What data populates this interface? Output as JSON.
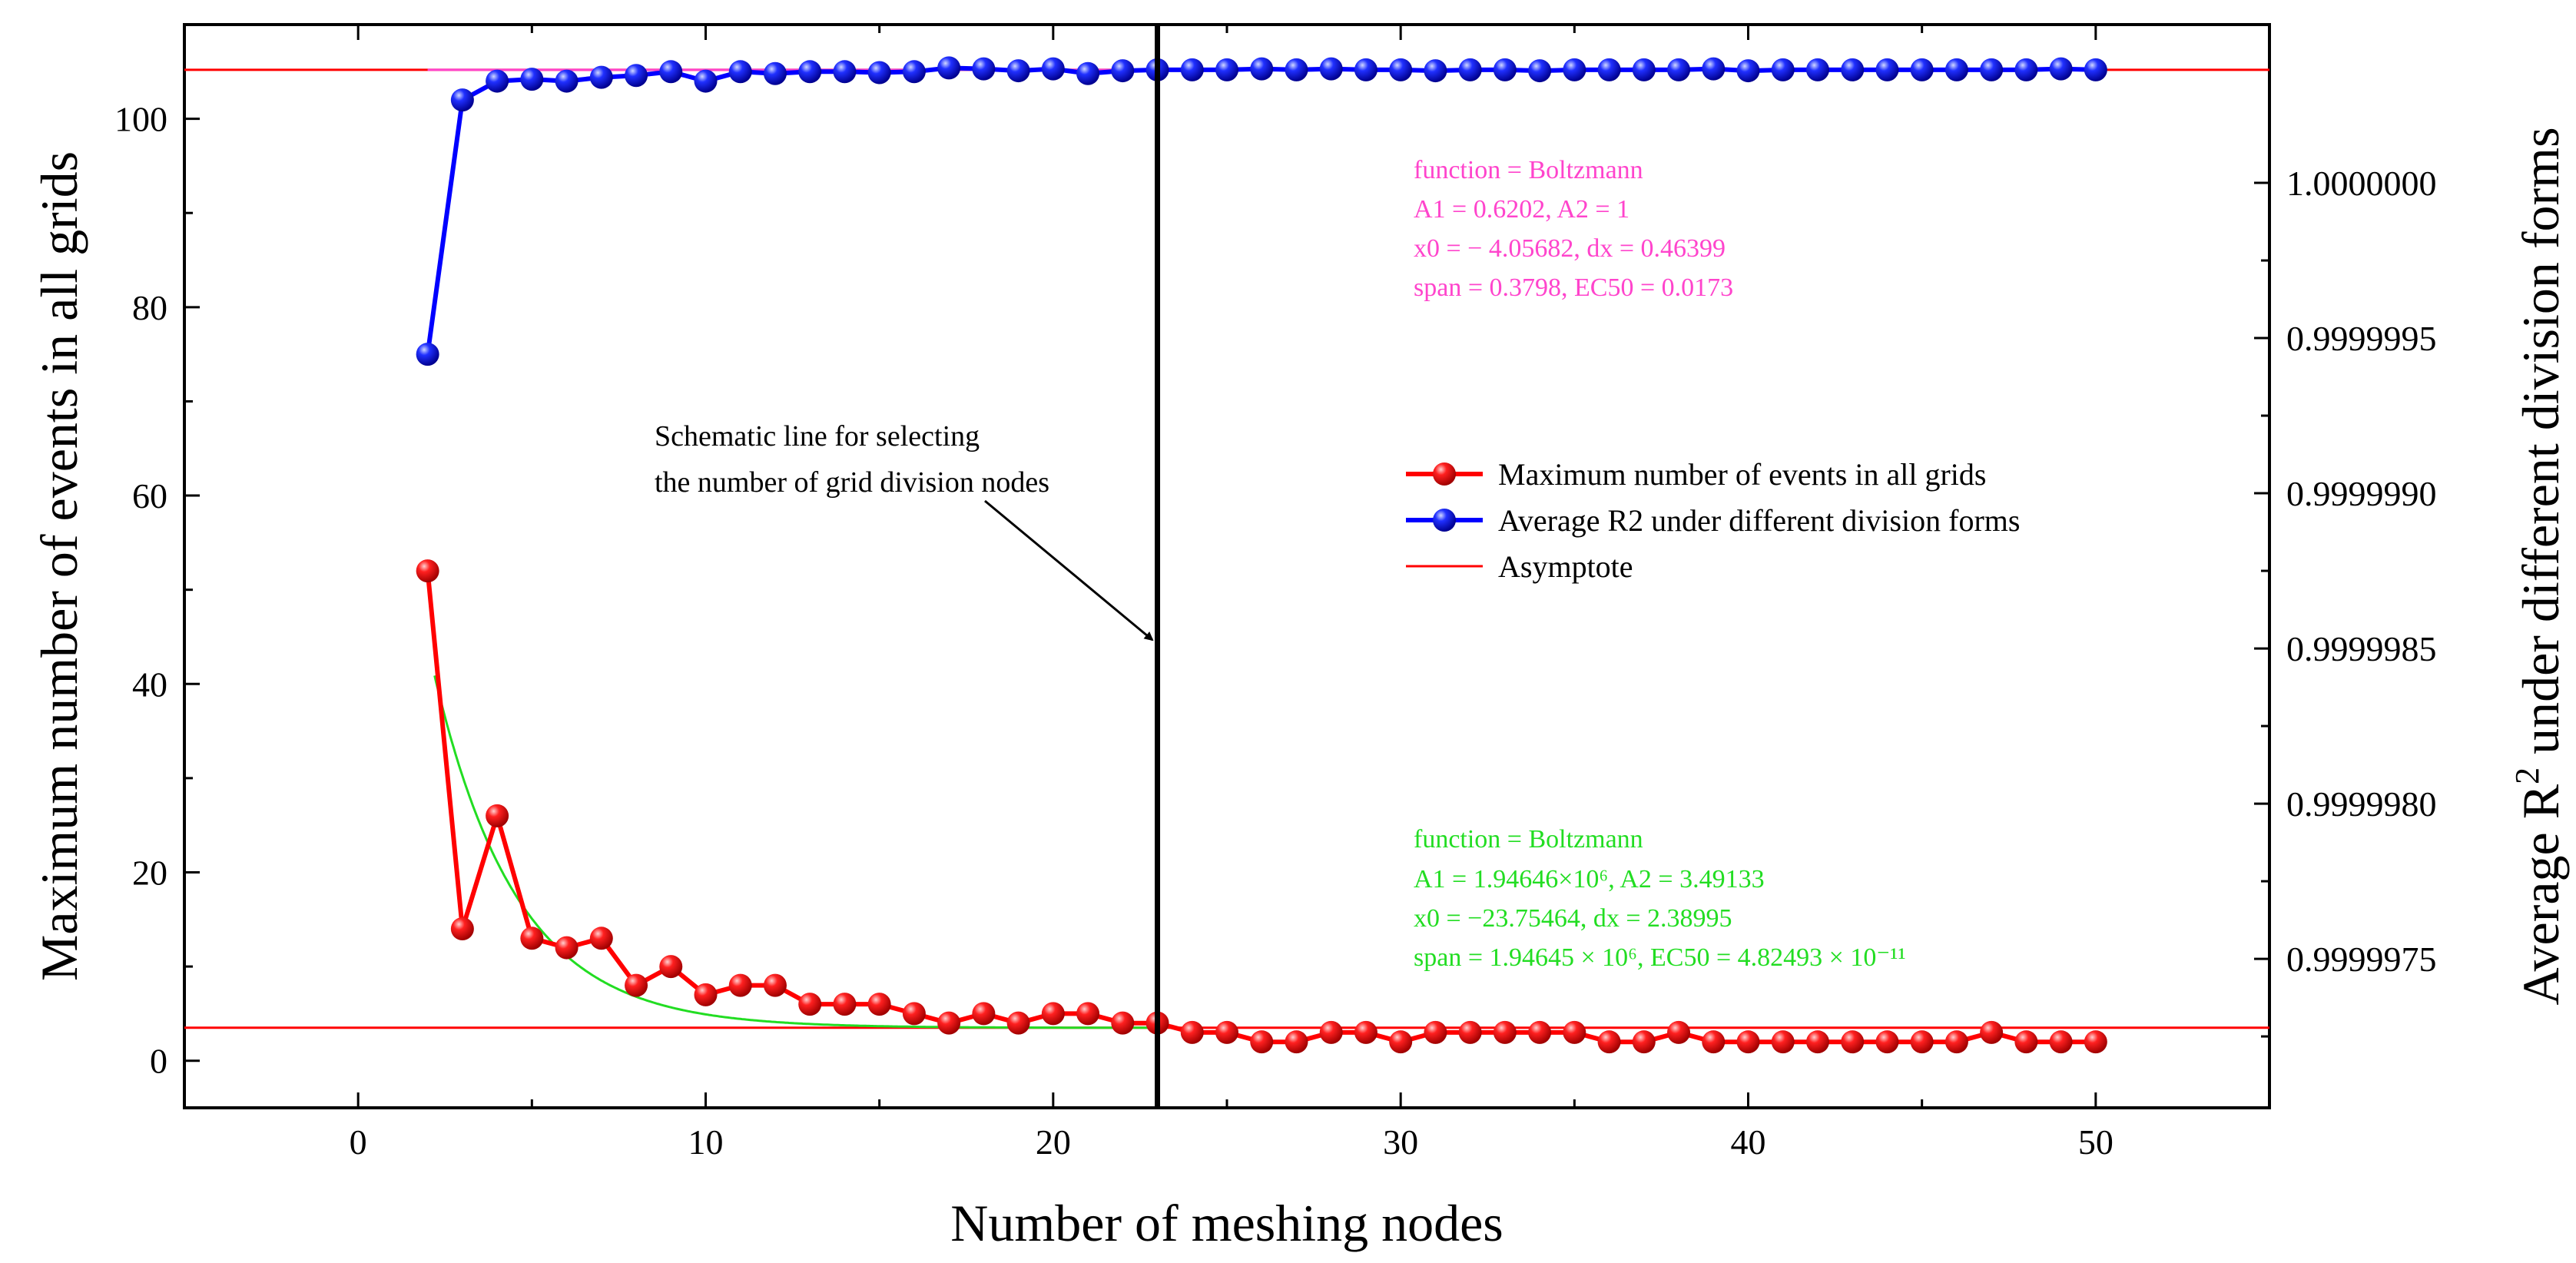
{
  "chart_data": {
    "type": "line",
    "xlabel": "Number of meshing nodes",
    "ylabel_left": "Maximum number of events in all grids",
    "ylabel_right_prefix": "Average R",
    "ylabel_right_sup": "2",
    "ylabel_right_suffix": " under different division forms",
    "xlim": [
      -5,
      55
    ],
    "ylim_left": [
      -5,
      110
    ],
    "ylim_right": [
      0.99999702,
      1.00000051
    ],
    "xticks": [
      0,
      10,
      20,
      30,
      40,
      50
    ],
    "xtick_labels": [
      "0",
      "10",
      "20",
      "30",
      "40",
      "50"
    ],
    "yticks_left": [
      0,
      20,
      40,
      60,
      80,
      100
    ],
    "ytick_labels_left": [
      "0",
      "20",
      "40",
      "60",
      "80",
      "100"
    ],
    "yticks_right": [
      0.9999975,
      0.999998,
      0.9999985,
      0.999999,
      0.9999995,
      1.0
    ],
    "ytick_labels_right": [
      "0.9999975",
      "0.9999980",
      "0.9999985",
      "0.9999990",
      "0.9999995",
      "1.0000000"
    ],
    "series": [
      {
        "name": "Maximum number of events in all grids",
        "axis": "left",
        "color": "#ff0000",
        "x": [
          2,
          3,
          4,
          5,
          6,
          7,
          8,
          9,
          10,
          11,
          12,
          13,
          14,
          15,
          16,
          17,
          18,
          19,
          20,
          21,
          22,
          23,
          24,
          25,
          26,
          27,
          28,
          29,
          30,
          31,
          32,
          33,
          34,
          35,
          36,
          37,
          38,
          39,
          40,
          41,
          42,
          43,
          44,
          45,
          46,
          47,
          48,
          49,
          50
        ],
        "values": [
          52,
          14,
          26,
          13,
          12,
          13,
          8,
          10,
          7,
          8,
          8,
          6,
          6,
          6,
          5,
          4,
          5,
          4,
          5,
          5,
          4,
          4,
          3,
          3,
          2,
          2,
          3,
          3,
          2,
          3,
          3,
          3,
          3,
          3,
          2,
          2,
          3,
          2,
          2,
          2,
          2,
          2,
          2,
          2,
          2,
          3,
          2,
          2,
          2
        ]
      },
      {
        "name": "Average R2 under different division forms",
        "axis": "left",
        "color": "#0000ff",
        "x": [
          2,
          3,
          4,
          5,
          6,
          7,
          8,
          9,
          10,
          11,
          12,
          13,
          14,
          15,
          16,
          17,
          18,
          19,
          20,
          21,
          22,
          23,
          24,
          25,
          26,
          27,
          28,
          29,
          30,
          31,
          32,
          33,
          34,
          35,
          36,
          37,
          38,
          39,
          40,
          41,
          42,
          43,
          44,
          45,
          46,
          47,
          48,
          49,
          50
        ],
        "values": [
          75,
          102,
          104,
          104.2,
          104,
          104.4,
          104.6,
          105,
          104,
          105,
          104.8,
          105,
          105,
          104.9,
          105,
          105.4,
          105.3,
          105.1,
          105.3,
          104.8,
          105.1,
          105.2,
          105.2,
          105.2,
          105.3,
          105.2,
          105.3,
          105.2,
          105.2,
          105.1,
          105.2,
          105.2,
          105.1,
          105.2,
          105.2,
          105.2,
          105.2,
          105.3,
          105.1,
          105.2,
          105.2,
          105.2,
          105.2,
          105.2,
          105.2,
          105.2,
          105.2,
          105.3,
          105.2
        ]
      },
      {
        "name": "Asymptote",
        "type": "hline",
        "color": "#ff0000",
        "y_values": [
          3.5,
          105.2
        ]
      }
    ],
    "fits": [
      {
        "name": "Boltzmann fit (green)",
        "color": "#22dd22",
        "A1": 1946460,
        "A2": 3.49133,
        "x0": -23.75464,
        "dx": 2.38995,
        "x_range": [
          2.2,
          23
        ]
      },
      {
        "name": "Boltzmann fit (magenta)",
        "color": "#ff44cc",
        "A1": 0.6202,
        "A2": 1,
        "x0": -4.05682,
        "dx": 0.46399,
        "scale_to_left": 105.2,
        "x_range": [
          2,
          23
        ]
      }
    ],
    "selection_line_x": 23,
    "annotation": {
      "line1": "Schematic line for selecting",
      "line2": "the number of grid division nodes"
    },
    "fit_boxes": [
      {
        "color": "#ff44cc",
        "lines": [
          "function = Boltzmann",
          "A1 = 0.6202, A2 = 1",
          "x0 = − 4.05682, dx = 0.46399",
          "span = 0.3798, EC50 = 0.0173"
        ]
      },
      {
        "color": "#22dd22",
        "lines": [
          "function = Boltzmann",
          "A1 = 1.94646×10⁶,   A2 = 3.49133",
          "x0 = −23.75464,   dx = 2.38995",
          "span = 1.94645 × 10⁶,   EC50 = 4.82493 × 10⁻¹¹"
        ]
      }
    ],
    "legend": {
      "placement": "center-right",
      "entries": [
        {
          "label": "Maximum number of events in all grids",
          "color": "#ff0000",
          "marker": "sphere"
        },
        {
          "label": "Average R2 under different division forms",
          "color": "#0000ff",
          "marker": "sphere"
        },
        {
          "label": "Asymptote",
          "color": "#ff0000",
          "marker": "line"
        }
      ]
    }
  }
}
